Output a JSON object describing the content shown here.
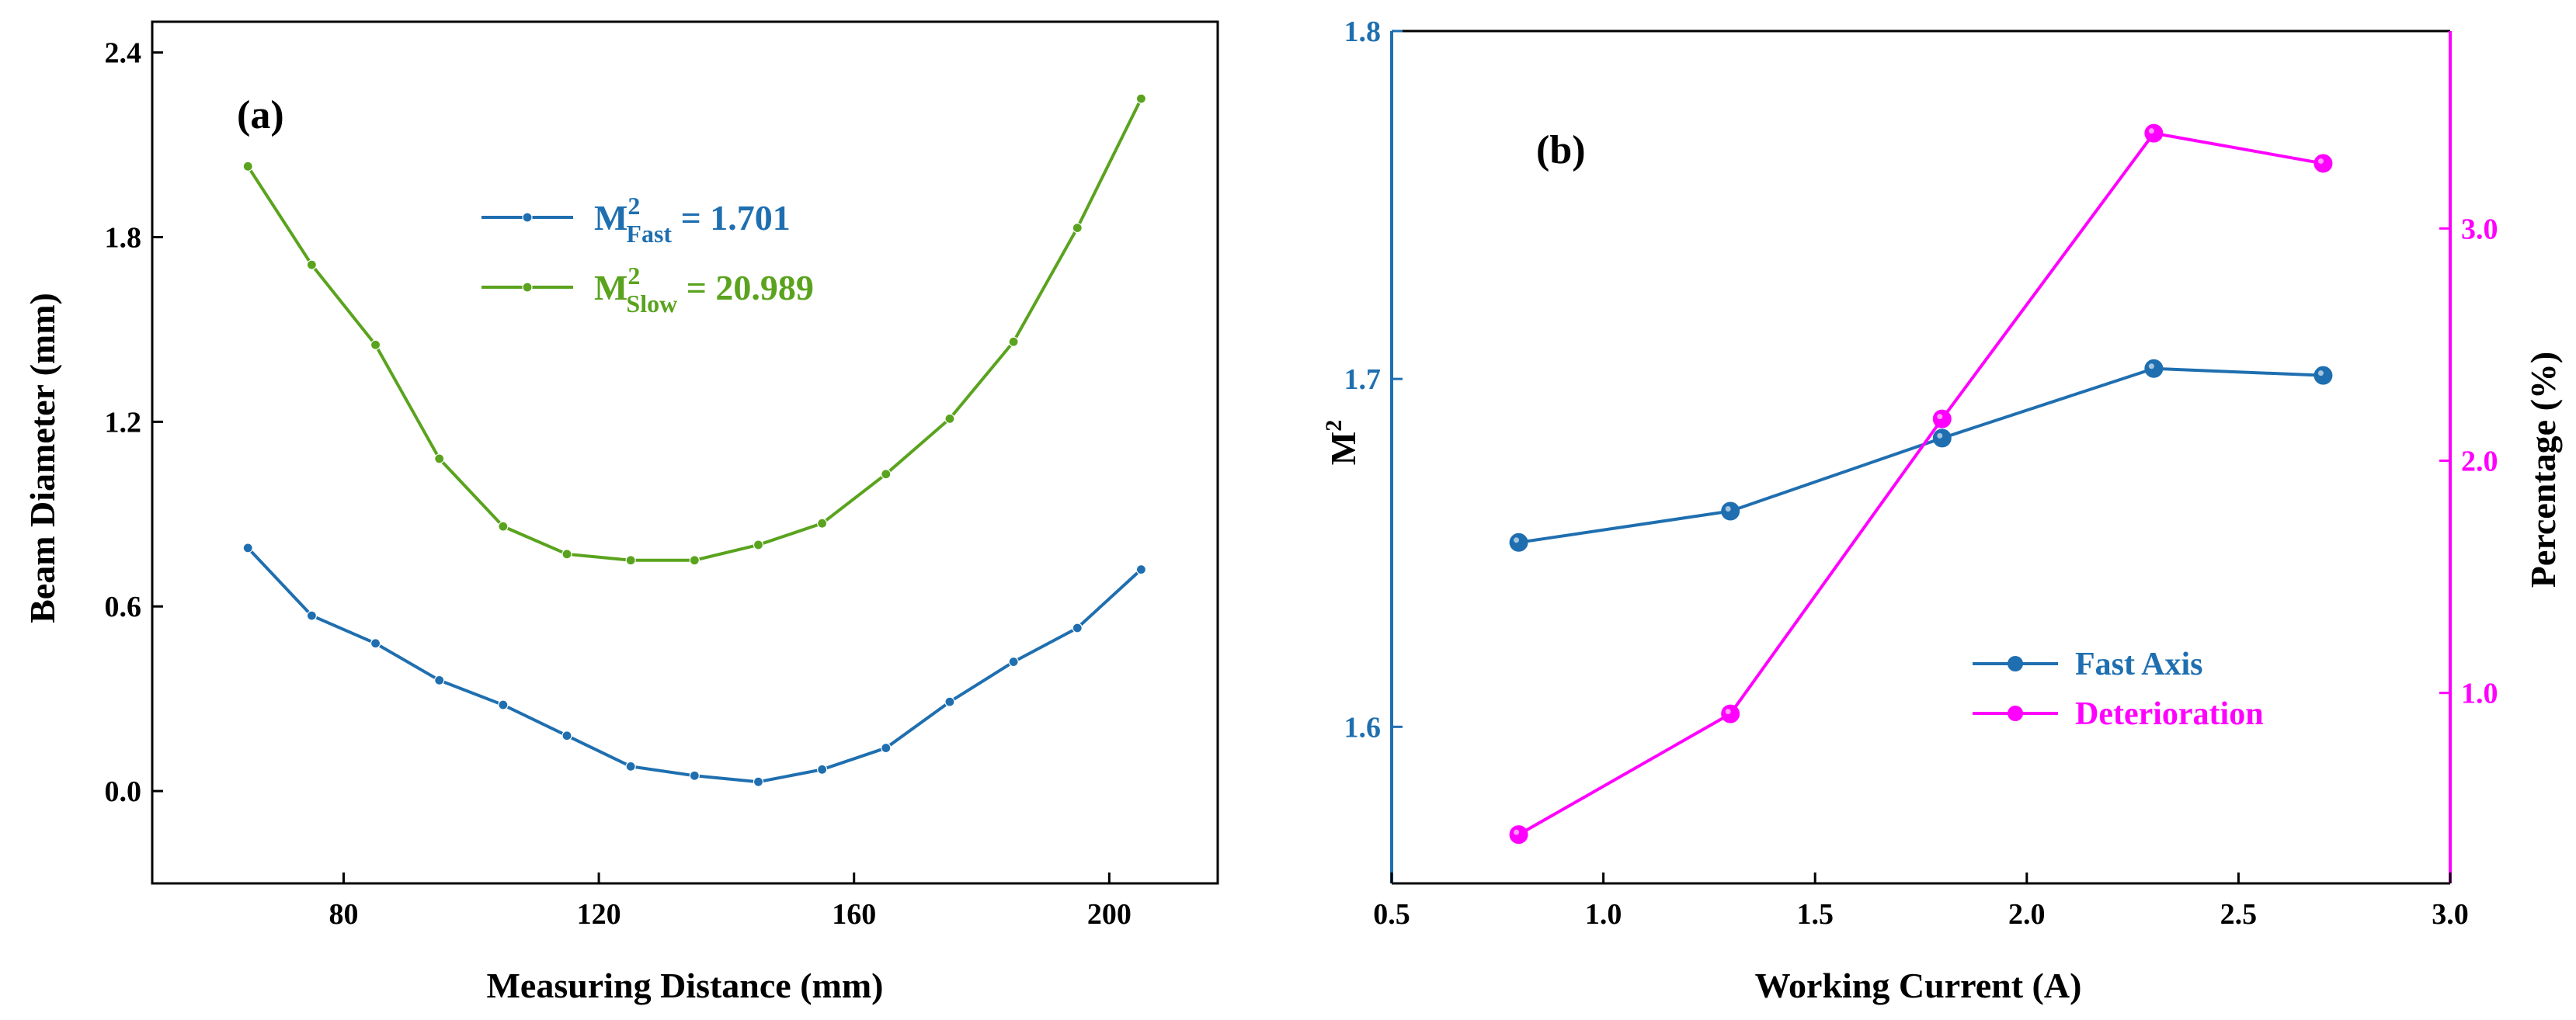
{
  "chart_data": [
    {
      "type": "line",
      "panel": "(a)",
      "xlabel": "Measuring Distance (mm)",
      "ylabel": "Beam Diameter (mm)",
      "xlim": [
        50,
        217
      ],
      "ylim": [
        -0.3,
        2.5
      ],
      "xticks": [
        80,
        120,
        160,
        200
      ],
      "xtick_labels": [
        "80",
        "120",
        "160",
        "200"
      ],
      "yticks": [
        0.0,
        0.6,
        1.2,
        1.8,
        2.4
      ],
      "ytick_labels": [
        "0.0",
        "0.6",
        "1.2",
        "1.8",
        "2.4"
      ],
      "legend_position": "top-center",
      "x": [
        65,
        75,
        85,
        95,
        105,
        115,
        125,
        135,
        145,
        155,
        165,
        175,
        185,
        195,
        205
      ],
      "series": [
        {
          "name": "M2_Fast",
          "legend": {
            "base": "M",
            "sup": "2",
            "sub": "Fast",
            "value": " = 1.701"
          },
          "color": "#1f6fb0",
          "values": [
            0.79,
            0.57,
            0.48,
            0.36,
            0.28,
            0.18,
            0.08,
            0.05,
            0.03,
            0.07,
            0.14,
            0.29,
            0.42,
            0.53,
            0.72
          ]
        },
        {
          "name": "M2_Slow",
          "legend": {
            "base": "M",
            "sup": "2",
            "sub": "Slow",
            "value": " = 20.989"
          },
          "color": "#5aa31e",
          "values": [
            2.03,
            1.71,
            1.45,
            1.08,
            0.86,
            0.77,
            0.75,
            0.75,
            0.8,
            0.87,
            1.03,
            1.21,
            1.46,
            1.83,
            2.25
          ]
        }
      ]
    },
    {
      "type": "line",
      "panel": "(b)",
      "xlabel": "Working Current (A)",
      "ylabel_left": {
        "base": "M",
        "sup": "2"
      },
      "ylabel_right": "Percentage (%)",
      "xlim": [
        0.5,
        3.0
      ],
      "ylim_left": [
        1.555,
        1.8
      ],
      "ylim_right": [
        0.18,
        3.85
      ],
      "xticks": [
        0.5,
        1.0,
        1.5,
        2.0,
        2.5,
        3.0
      ],
      "xtick_labels": [
        "0.5",
        "1.0",
        "1.5",
        "2.0",
        "2.5",
        "3.0"
      ],
      "yticks_left": [
        1.6,
        1.7,
        1.8
      ],
      "ytick_labels_left": [
        "1.6",
        "1.7",
        "1.8"
      ],
      "yticks_right": [
        1.0,
        2.0,
        3.0
      ],
      "ytick_labels_right": [
        "1.0",
        "2.0",
        "3.0"
      ],
      "legend_position": "bottom-right",
      "x": [
        0.8,
        1.3,
        1.8,
        2.3,
        2.7
      ],
      "series": [
        {
          "name": "Fast Axis",
          "axis": "left",
          "color": "#1f6fb0",
          "values": [
            1.653,
            1.662,
            1.683,
            1.703,
            1.701
          ]
        },
        {
          "name": "Deterioration",
          "axis": "right",
          "color": "#ff00ff",
          "values": [
            0.39,
            0.91,
            2.18,
            3.41,
            3.28
          ]
        }
      ]
    }
  ]
}
